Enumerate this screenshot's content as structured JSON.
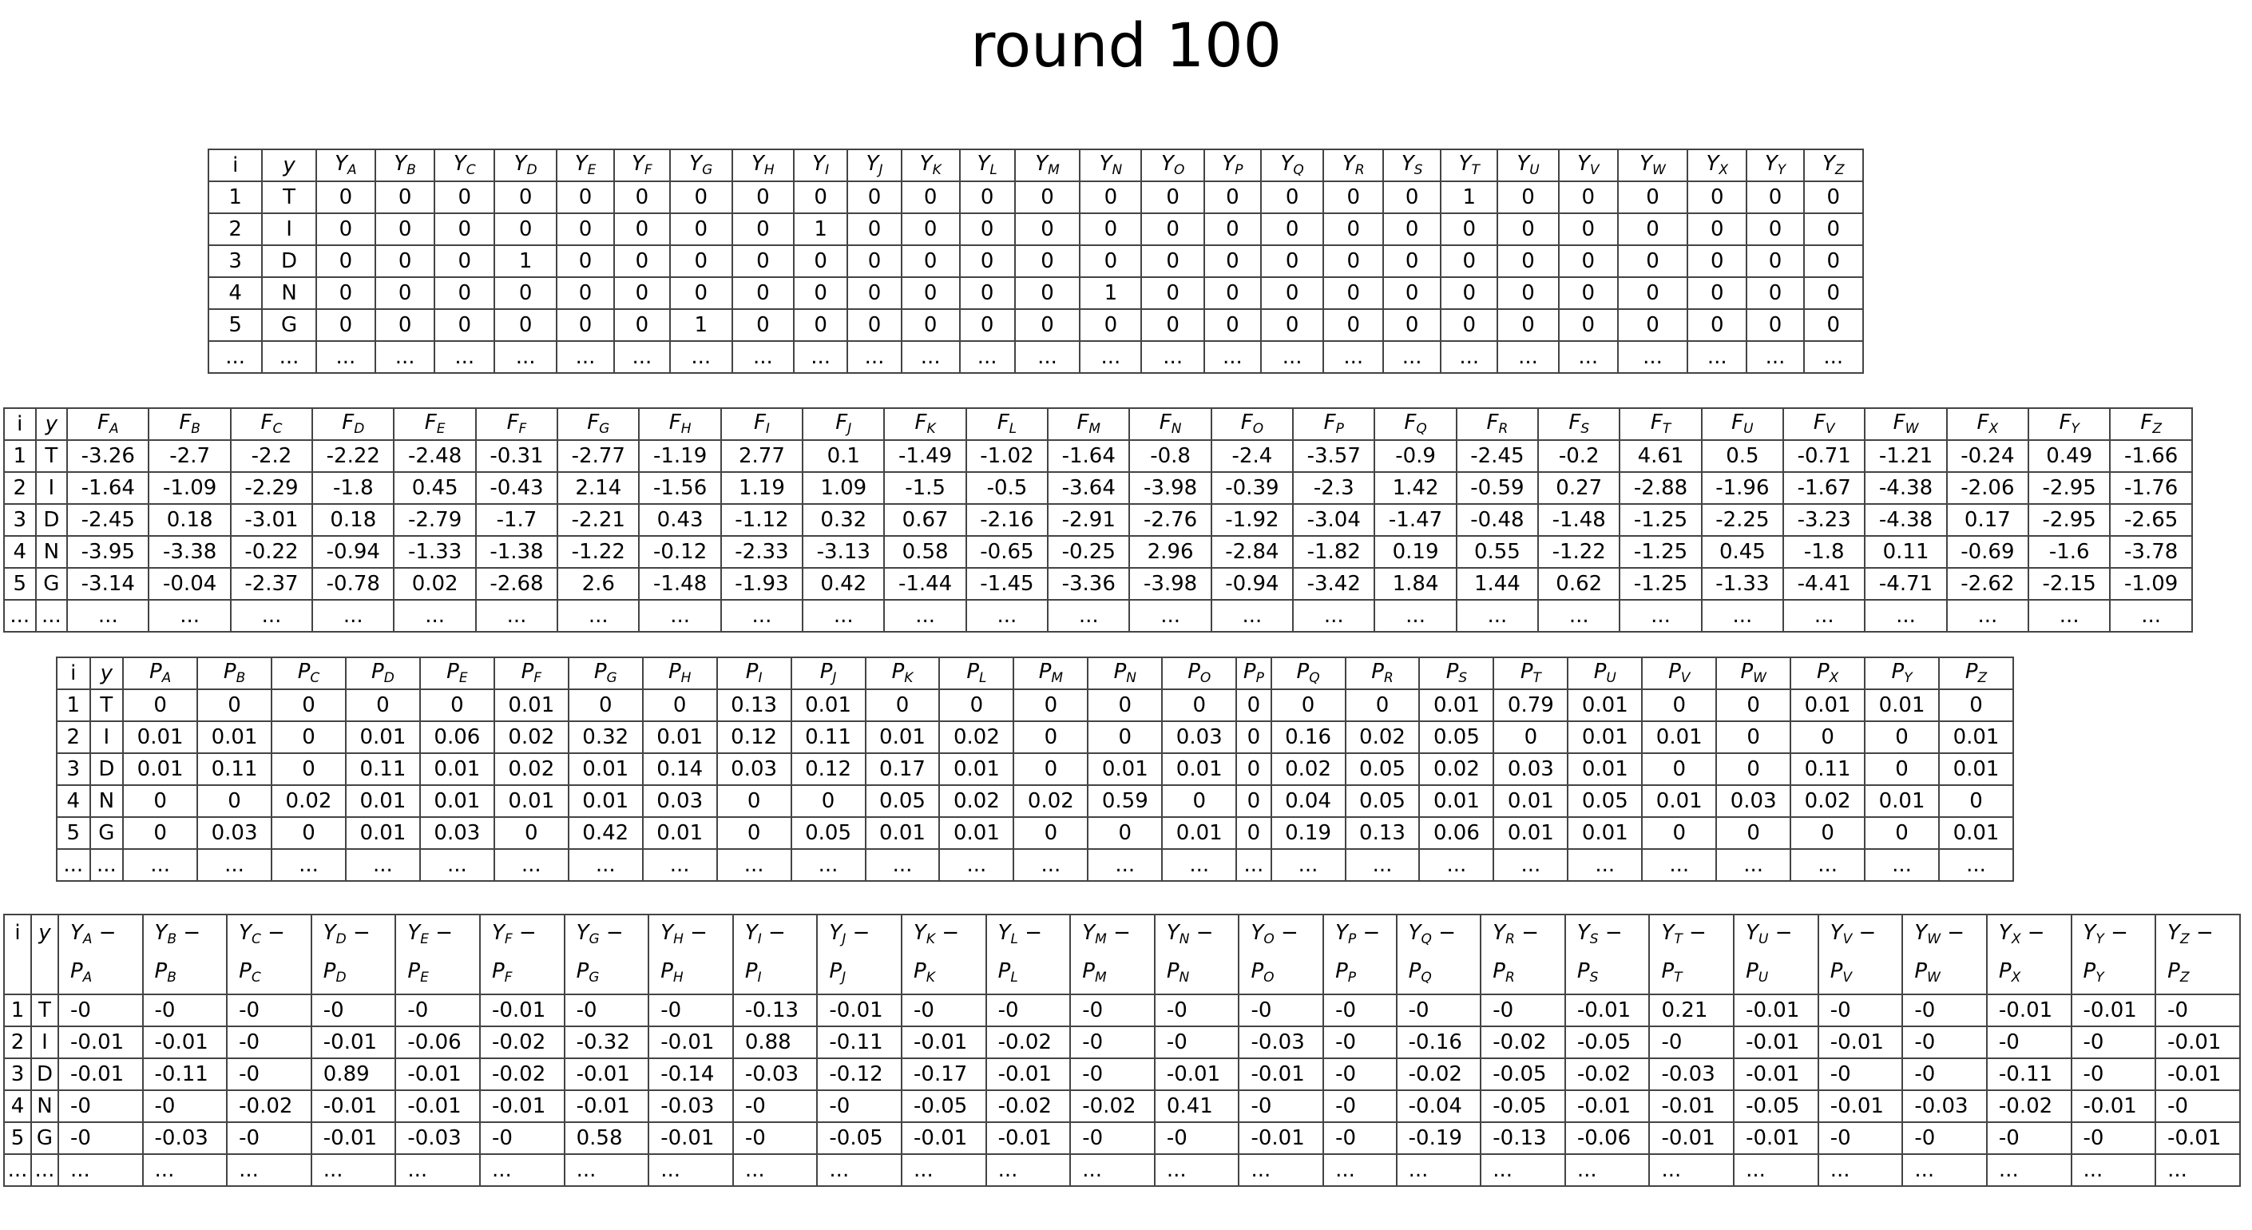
{
  "title": "round 100",
  "letters": [
    "A",
    "B",
    "C",
    "D",
    "E",
    "F",
    "G",
    "H",
    "I",
    "J",
    "K",
    "L",
    "M",
    "N",
    "O",
    "P",
    "Q",
    "R",
    "S",
    "T",
    "U",
    "V",
    "W",
    "X",
    "Y",
    "Z"
  ],
  "header": {
    "i": "i",
    "y": "y"
  },
  "ellipsis": "...",
  "tables": [
    {
      "name": "Y",
      "prefix": "Y",
      "rows": [
        {
          "i": "1",
          "y": "T",
          "values": [
            "0",
            "0",
            "0",
            "0",
            "0",
            "0",
            "0",
            "0",
            "0",
            "0",
            "0",
            "0",
            "0",
            "0",
            "0",
            "0",
            "0",
            "0",
            "0",
            "1",
            "0",
            "0",
            "0",
            "0",
            "0",
            "0"
          ]
        },
        {
          "i": "2",
          "y": "I",
          "values": [
            "0",
            "0",
            "0",
            "0",
            "0",
            "0",
            "0",
            "0",
            "1",
            "0",
            "0",
            "0",
            "0",
            "0",
            "0",
            "0",
            "0",
            "0",
            "0",
            "0",
            "0",
            "0",
            "0",
            "0",
            "0",
            "0"
          ]
        },
        {
          "i": "3",
          "y": "D",
          "values": [
            "0",
            "0",
            "0",
            "1",
            "0",
            "0",
            "0",
            "0",
            "0",
            "0",
            "0",
            "0",
            "0",
            "0",
            "0",
            "0",
            "0",
            "0",
            "0",
            "0",
            "0",
            "0",
            "0",
            "0",
            "0",
            "0"
          ]
        },
        {
          "i": "4",
          "y": "N",
          "values": [
            "0",
            "0",
            "0",
            "0",
            "0",
            "0",
            "0",
            "0",
            "0",
            "0",
            "0",
            "0",
            "0",
            "1",
            "0",
            "0",
            "0",
            "0",
            "0",
            "0",
            "0",
            "0",
            "0",
            "0",
            "0",
            "0"
          ]
        },
        {
          "i": "5",
          "y": "G",
          "values": [
            "0",
            "0",
            "0",
            "0",
            "0",
            "0",
            "1",
            "0",
            "0",
            "0",
            "0",
            "0",
            "0",
            "0",
            "0",
            "0",
            "0",
            "0",
            "0",
            "0",
            "0",
            "0",
            "0",
            "0",
            "0",
            "0"
          ]
        }
      ]
    },
    {
      "name": "F",
      "prefix": "F",
      "rows": [
        {
          "i": "1",
          "y": "T",
          "values": [
            "-3.26",
            "-2.7",
            "-2.2",
            "-2.22",
            "-2.48",
            "-0.31",
            "-2.77",
            "-1.19",
            "2.77",
            "0.1",
            "-1.49",
            "-1.02",
            "-1.64",
            "-0.8",
            "-2.4",
            "-3.57",
            "-0.9",
            "-2.45",
            "-0.2",
            "4.61",
            "0.5",
            "-0.71",
            "-1.21",
            "-0.24",
            "0.49",
            "-1.66"
          ]
        },
        {
          "i": "2",
          "y": "I",
          "values": [
            "-1.64",
            "-1.09",
            "-2.29",
            "-1.8",
            "0.45",
            "-0.43",
            "2.14",
            "-1.56",
            "1.19",
            "1.09",
            "-1.5",
            "-0.5",
            "-3.64",
            "-3.98",
            "-0.39",
            "-2.3",
            "1.42",
            "-0.59",
            "0.27",
            "-2.88",
            "-1.96",
            "-1.67",
            "-4.38",
            "-2.06",
            "-2.95",
            "-1.76"
          ]
        },
        {
          "i": "3",
          "y": "D",
          "values": [
            "-2.45",
            "0.18",
            "-3.01",
            "0.18",
            "-2.79",
            "-1.7",
            "-2.21",
            "0.43",
            "-1.12",
            "0.32",
            "0.67",
            "-2.16",
            "-2.91",
            "-2.76",
            "-1.92",
            "-3.04",
            "-1.47",
            "-0.48",
            "-1.48",
            "-1.25",
            "-2.25",
            "-3.23",
            "-4.38",
            "0.17",
            "-2.95",
            "-2.65"
          ]
        },
        {
          "i": "4",
          "y": "N",
          "values": [
            "-3.95",
            "-3.38",
            "-0.22",
            "-0.94",
            "-1.33",
            "-1.38",
            "-1.22",
            "-0.12",
            "-2.33",
            "-3.13",
            "0.58",
            "-0.65",
            "-0.25",
            "2.96",
            "-2.84",
            "-1.82",
            "0.19",
            "0.55",
            "-1.22",
            "-1.25",
            "0.45",
            "-1.8",
            "0.11",
            "-0.69",
            "-1.6",
            "-3.78"
          ]
        },
        {
          "i": "5",
          "y": "G",
          "values": [
            "-3.14",
            "-0.04",
            "-2.37",
            "-0.78",
            "0.02",
            "-2.68",
            "2.6",
            "-1.48",
            "-1.93",
            "0.42",
            "-1.44",
            "-1.45",
            "-3.36",
            "-3.98",
            "-0.94",
            "-3.42",
            "1.84",
            "1.44",
            "0.62",
            "-1.25",
            "-1.33",
            "-4.41",
            "-4.71",
            "-2.62",
            "-2.15",
            "-1.09"
          ]
        }
      ]
    },
    {
      "name": "P",
      "prefix": "P",
      "rows": [
        {
          "i": "1",
          "y": "T",
          "values": [
            "0",
            "0",
            "0",
            "0",
            "0",
            "0.01",
            "0",
            "0",
            "0.13",
            "0.01",
            "0",
            "0",
            "0",
            "0",
            "0",
            "0",
            "0",
            "0",
            "0.01",
            "0.79",
            "0.01",
            "0",
            "0",
            "0.01",
            "0.01",
            "0"
          ]
        },
        {
          "i": "2",
          "y": "I",
          "values": [
            "0.01",
            "0.01",
            "0",
            "0.01",
            "0.06",
            "0.02",
            "0.32",
            "0.01",
            "0.12",
            "0.11",
            "0.01",
            "0.02",
            "0",
            "0",
            "0.03",
            "0",
            "0.16",
            "0.02",
            "0.05",
            "0",
            "0.01",
            "0.01",
            "0",
            "0",
            "0",
            "0.01"
          ]
        },
        {
          "i": "3",
          "y": "D",
          "values": [
            "0.01",
            "0.11",
            "0",
            "0.11",
            "0.01",
            "0.02",
            "0.01",
            "0.14",
            "0.03",
            "0.12",
            "0.17",
            "0.01",
            "0",
            "0.01",
            "0.01",
            "0",
            "0.02",
            "0.05",
            "0.02",
            "0.03",
            "0.01",
            "0",
            "0",
            "0.11",
            "0",
            "0.01"
          ]
        },
        {
          "i": "4",
          "y": "N",
          "values": [
            "0",
            "0",
            "0.02",
            "0.01",
            "0.01",
            "0.01",
            "0.01",
            "0.03",
            "0",
            "0",
            "0.05",
            "0.02",
            "0.02",
            "0.59",
            "0",
            "0",
            "0.04",
            "0.05",
            "0.01",
            "0.01",
            "0.05",
            "0.01",
            "0.03",
            "0.02",
            "0.01",
            "0"
          ]
        },
        {
          "i": "5",
          "y": "G",
          "values": [
            "0",
            "0.03",
            "0",
            "0.01",
            "0.03",
            "0",
            "0.42",
            "0.01",
            "0",
            "0.05",
            "0.01",
            "0.01",
            "0",
            "0",
            "0.01",
            "0",
            "0.19",
            "0.13",
            "0.06",
            "0.01",
            "0.01",
            "0",
            "0",
            "0",
            "0",
            "0.01"
          ]
        }
      ]
    },
    {
      "name": "Y-P",
      "prefix": "Y-P",
      "header_dash": "−",
      "rows": [
        {
          "i": "1",
          "y": "T",
          "values": [
            "-0",
            "-0",
            "-0",
            "-0",
            "-0",
            "-0.01",
            "-0",
            "-0",
            "-0.13",
            "-0.01",
            "-0",
            "-0",
            "-0",
            "-0",
            "-0",
            "-0",
            "-0",
            "-0",
            "-0.01",
            "0.21",
            "-0.01",
            "-0",
            "-0",
            "-0.01",
            "-0.01",
            "-0"
          ]
        },
        {
          "i": "2",
          "y": "I",
          "values": [
            "-0.01",
            "-0.01",
            "-0",
            "-0.01",
            "-0.06",
            "-0.02",
            "-0.32",
            "-0.01",
            "0.88",
            "-0.11",
            "-0.01",
            "-0.02",
            "-0",
            "-0",
            "-0.03",
            "-0",
            "-0.16",
            "-0.02",
            "-0.05",
            "-0",
            "-0.01",
            "-0.01",
            "-0",
            "-0",
            "-0",
            "-0.01"
          ]
        },
        {
          "i": "3",
          "y": "D",
          "values": [
            "-0.01",
            "-0.11",
            "-0",
            "0.89",
            "-0.01",
            "-0.02",
            "-0.01",
            "-0.14",
            "-0.03",
            "-0.12",
            "-0.17",
            "-0.01",
            "-0",
            "-0.01",
            "-0.01",
            "-0",
            "-0.02",
            "-0.05",
            "-0.02",
            "-0.03",
            "-0.01",
            "-0",
            "-0",
            "-0.11",
            "-0",
            "-0.01"
          ]
        },
        {
          "i": "4",
          "y": "N",
          "values": [
            "-0",
            "-0",
            "-0.02",
            "-0.01",
            "-0.01",
            "-0.01",
            "-0.01",
            "-0.03",
            "-0",
            "-0",
            "-0.05",
            "-0.02",
            "-0.02",
            "0.41",
            "-0",
            "-0",
            "-0.04",
            "-0.05",
            "-0.01",
            "-0.01",
            "-0.05",
            "-0.01",
            "-0.03",
            "-0.02",
            "-0.01",
            "-0"
          ]
        },
        {
          "i": "5",
          "y": "G",
          "values": [
            "-0",
            "-0.03",
            "-0",
            "-0.01",
            "-0.03",
            "-0",
            "0.58",
            "-0.01",
            "-0",
            "-0.05",
            "-0.01",
            "-0.01",
            "-0",
            "-0",
            "-0.01",
            "-0",
            "-0.19",
            "-0.13",
            "-0.06",
            "-0.01",
            "-0.01",
            "-0",
            "-0",
            "-0",
            "-0",
            "-0.01"
          ]
        }
      ]
    }
  ]
}
